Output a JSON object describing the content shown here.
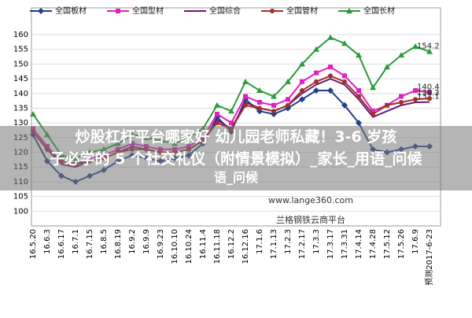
{
  "chart_data": {
    "type": "line",
    "categories": [
      "16.5.20",
      "16.6.3",
      "16.6.17",
      "16.7.1",
      "16.7.15",
      "16.8.5",
      "16.8.19",
      "16.9.2",
      "16.9.9",
      "16.9.23",
      "16.10.10",
      "16.10.24",
      "16.11.4",
      "16.11.18",
      "16.12.2",
      "16.12.16",
      "17.1.6",
      "17.1.13",
      "17.2.3",
      "17.2.17",
      "17.3.3",
      "17.3.17",
      "17.3.31",
      "17.4.14",
      "17.4.28",
      "17.5.12",
      "17.5.26",
      "17.6.9",
      "预测2017-6-23"
    ],
    "series": [
      {
        "name": "全国板材",
        "color": "#1f3f8f",
        "marker": "diamond",
        "label_last": false,
        "values": [
          126,
          117,
          112,
          110,
          112,
          114,
          117,
          119,
          118,
          117,
          118,
          119,
          123,
          132,
          127,
          138,
          134,
          133,
          135,
          138,
          141,
          141,
          136,
          130,
          121,
          120,
          121,
          122,
          122
        ]
      },
      {
        "name": "全国型材",
        "color": "#e020c0",
        "marker": "square",
        "label_last": true,
        "values": [
          128,
          122,
          117,
          116,
          118,
          119,
          121,
          123,
          122,
          121,
          121,
          122,
          125,
          133,
          130,
          139,
          137,
          136,
          138,
          144,
          147,
          149,
          146,
          141,
          134,
          136,
          139,
          141,
          140.4
        ]
      },
      {
        "name": "全国综合",
        "color": "#6a1a7a",
        "marker": "none",
        "label_last": true,
        "values": [
          127,
          121,
          116,
          115,
          117,
          118,
          120,
          122,
          121,
          120,
          120,
          121,
          124,
          131,
          128,
          137,
          135,
          134,
          136,
          140,
          143,
          145,
          143,
          138,
          132,
          134,
          136,
          137,
          137.1
        ]
      },
      {
        "name": "全国管材",
        "color": "#a0302a",
        "marker": "circle",
        "label_last": true,
        "values": [
          127,
          121,
          117,
          116,
          117,
          118,
          120,
          121,
          121,
          120,
          120,
          121,
          124,
          130,
          128,
          136,
          135,
          134,
          136,
          141,
          144,
          146,
          144,
          139,
          133,
          136,
          137,
          138,
          138.3
        ]
      },
      {
        "name": "全国长材",
        "color": "#2a9a3a",
        "marker": "triangle",
        "label_last": true,
        "values": [
          133,
          126,
          119,
          118,
          120,
          121,
          123,
          126,
          125,
          124,
          123,
          125,
          128,
          136,
          134,
          144,
          141,
          139,
          144,
          150,
          155,
          159,
          157,
          153,
          142,
          149,
          153,
          156,
          154.2
        ]
      }
    ],
    "ylim": [
      95,
      160
    ],
    "yticks": [
      100,
      105,
      110,
      115,
      120,
      125,
      130,
      135,
      140,
      145,
      150,
      155,
      160
    ],
    "grid": true,
    "watermark": [
      "www.lange360.com",
      "兰格钢铁云商平台"
    ]
  },
  "overlay": {
    "lines": [
      "炒股杠杆平台哪家好 幼儿园老师私藏！3-6 岁孩",
      "子必学的 5 个社交礼仪（附情景模拟）_家长_用语_问候",
      "语_问候"
    ]
  }
}
